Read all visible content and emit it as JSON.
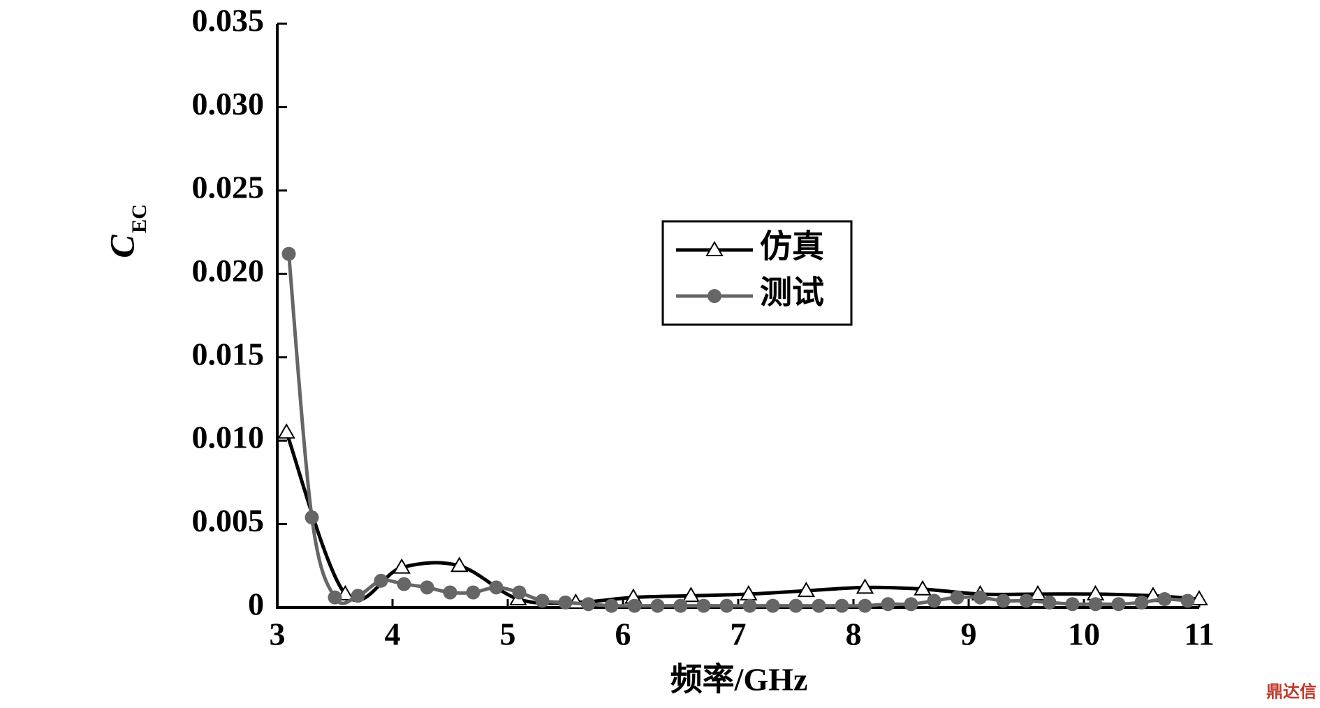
{
  "chart_data": {
    "type": "line",
    "y_label": {
      "main": "C",
      "sub": "EC"
    },
    "x_label": "频率/GHz",
    "watermark": "鼎达信",
    "xlim": [
      3,
      11
    ],
    "xticks": [
      3,
      4,
      5,
      6,
      7,
      8,
      9,
      10,
      11
    ],
    "ylim": [
      0,
      0.035
    ],
    "yticks": [
      0,
      0.005,
      {
        "value": 0.01,
        "label": "0.010"
      },
      0.015,
      {
        "value": 0.02,
        "label": "0.020"
      },
      0.025,
      {
        "value": 0.03,
        "label": "0.030"
      },
      0.035
    ],
    "legend_position": "center",
    "series": [
      {
        "name": "仿真",
        "color": "#000000",
        "marker": "triangle",
        "x": [
          3.08,
          3.59,
          4.08,
          4.58,
          5.09,
          5.59,
          6.09,
          6.59,
          7.09,
          7.59,
          8.1,
          8.6,
          9.1,
          9.6,
          10.1,
          10.6,
          11
        ],
        "values": [
          0.0105,
          0.0008,
          0.0024,
          0.0025,
          0.0005,
          0.0003,
          0.0006,
          0.0007,
          0.0008,
          0.001,
          0.0012,
          0.0011,
          0.0008,
          0.0008,
          0.0008,
          0.0007,
          0.0005
        ]
      },
      {
        "name": "测试",
        "color": "#666666",
        "marker": "circle",
        "x": [
          3.1,
          3.3,
          3.5,
          3.7,
          3.9,
          4.1,
          4.3,
          4.5,
          4.7,
          4.9,
          5.1,
          5.3,
          5.5,
          5.7,
          5.9,
          6.1,
          6.3,
          6.5,
          6.7,
          6.9,
          7.1,
          7.3,
          7.5,
          7.7,
          7.9,
          8.1,
          8.3,
          8.5,
          8.7,
          8.9,
          9.1,
          9.3,
          9.5,
          9.7,
          9.9,
          10.1,
          10.3,
          10.5,
          10.7,
          10.9
        ],
        "values": [
          0.0212,
          0.0054,
          0.0006,
          0.0007,
          0.0016,
          0.0014,
          0.0012,
          0.0009,
          0.0009,
          0.0012,
          0.0009,
          0.0004,
          0.0003,
          0.0002,
          0.0001,
          0.0001,
          0.0001,
          0.0001,
          0.0001,
          0.0001,
          0.0001,
          0.0001,
          0.0001,
          0.0001,
          0.0001,
          0.0001,
          0.0002,
          0.0002,
          0.0004,
          0.0006,
          0.0006,
          0.0004,
          0.0004,
          0.0003,
          0.0002,
          0.0002,
          0.0002,
          0.0003,
          0.0005,
          0.0004
        ]
      }
    ]
  }
}
